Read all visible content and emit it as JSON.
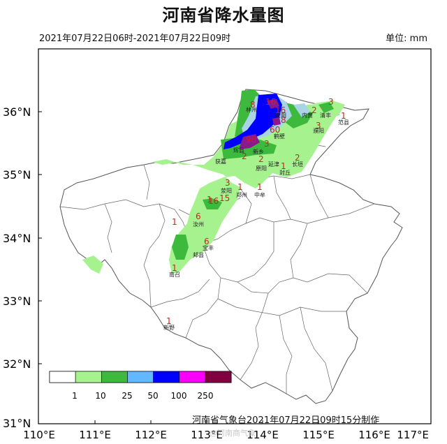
{
  "title": "河南省降水量图",
  "period": "2021年07月22日06时-2021年07月22日09时",
  "unit": "单位: mm",
  "credit": "河南省气象台2021年07月22日09时15分制作",
  "watermark": "@河南商气象",
  "lat_labels": [
    "36°N",
    "35°N",
    "34°N",
    "33°N",
    "32°N",
    "31°N"
  ],
  "lon_labels": [
    "110°E",
    "111°E",
    "112°E",
    "113°E",
    "114°E",
    "115°E",
    "116°E",
    "117°E"
  ],
  "legend": {
    "labels": [
      "1",
      "10",
      "25",
      "50",
      "100",
      "250"
    ],
    "colors": [
      "#ffffff",
      "#a6f28f",
      "#3dba3d",
      "#61b8ff",
      "#0000fe",
      "#fa00fa",
      "#800040"
    ]
  },
  "colors": {
    "light_green": "#a6f28f",
    "green": "#3dba3d",
    "light_blue": "#a8d4e6",
    "blue": "#0000fe",
    "purple": "#8a1a8a",
    "value_red": "#d21f1f"
  },
  "values": [
    "8",
    "16",
    "16",
    "8",
    "60",
    "98",
    "3",
    "2",
    "3",
    "3",
    "1",
    "2",
    "2",
    "1",
    "2",
    "1",
    "3",
    "1",
    "1",
    "15",
    "16",
    "6",
    "1",
    "6",
    "1",
    "1"
  ],
  "cities": [
    "林州",
    "安阳",
    "鹤壁",
    "内黄",
    "清丰",
    "濮阳",
    "范县",
    "辉县",
    "新乡",
    "原阳",
    "获嘉",
    "延津",
    "长垣",
    "封丘",
    "荥阳",
    "郑州",
    "中牟",
    "汝州",
    "宝丰",
    "郏县",
    "南召",
    "新野"
  ]
}
